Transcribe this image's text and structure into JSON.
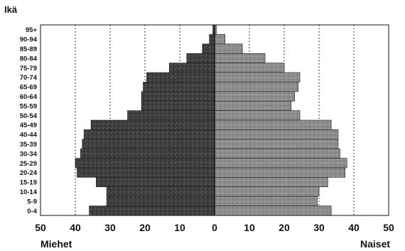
{
  "chart_data": {
    "type": "bar",
    "orientation": "horizontal",
    "subtype": "population-pyramid",
    "ylabel": "Ikä",
    "xlabel_left": "Miehet",
    "xlabel_right": "Naiset",
    "xlim": [
      -50,
      50
    ],
    "x_tick_labels": [
      "50",
      "40",
      "30",
      "20",
      "10",
      "0",
      "10",
      "20",
      "30",
      "40",
      "50"
    ],
    "x_tick_values": [
      -50,
      -40,
      -30,
      -20,
      -10,
      0,
      10,
      20,
      30,
      40,
      50
    ],
    "grid": "vertical-dotted",
    "categories": [
      "95+",
      "90-94",
      "85-89",
      "80-84",
      "75-79",
      "70-74",
      "65-69",
      "60-64",
      "55-59",
      "50-54",
      "45-49",
      "40-44",
      "35-39",
      "30-34",
      "25-29",
      "20-24",
      "15-19",
      "10-14",
      "5-9",
      "0-4"
    ],
    "series": [
      {
        "name": "Miehet",
        "color": "#3a3a3a",
        "values": [
          0.5,
          1.5,
          3.5,
          8,
          13,
          19.5,
          20.5,
          21,
          21,
          25,
          35.5,
          37.5,
          38,
          38.5,
          40,
          39.5,
          34,
          31,
          31,
          36
        ]
      },
      {
        "name": "Naiset",
        "color": "#8a8a8a",
        "values": [
          0.5,
          3,
          8,
          14.5,
          20,
          24.5,
          24,
          23,
          22,
          24.5,
          33.5,
          35.5,
          35.5,
          36,
          38,
          37.5,
          32.5,
          30,
          29.5,
          33.5
        ]
      }
    ]
  }
}
